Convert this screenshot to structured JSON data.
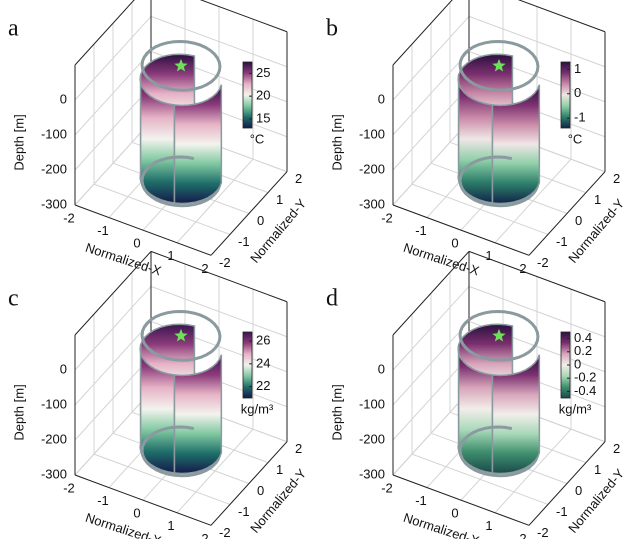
{
  "chart_data": [
    {
      "type": "surface",
      "panel": "a",
      "zlabel": "Depth [m]",
      "xlabel": "Normalized-X",
      "ylabel": "Normalized-Y",
      "zlim": [
        -300,
        100
      ],
      "zticks": [
        0,
        -100,
        -200,
        -300
      ],
      "xlim": [
        -2,
        2
      ],
      "xticks": [
        -2,
        -1,
        0,
        1,
        2
      ],
      "ylim": [
        -2,
        2
      ],
      "yticks": [
        -2,
        -1,
        0,
        1,
        2
      ],
      "clim": [
        13,
        27.5
      ],
      "cticks": [
        15,
        20,
        25
      ],
      "colorbar_label": "°C",
      "colormap": [
        "#2a1040",
        "#8a3a7a",
        "#e6b3c6",
        "#f3f3ee",
        "#7fc8a0",
        "#1f6e6a",
        "#141a4a"
      ]
    },
    {
      "type": "surface",
      "panel": "b",
      "zlabel": "Depth [m]",
      "xlabel": "Normalized-X",
      "ylabel": "Normalized-Y",
      "zlim": [
        -300,
        100
      ],
      "zticks": [
        0,
        -100,
        -200,
        -300
      ],
      "xlim": [
        -2,
        2
      ],
      "xticks": [
        -2,
        -1,
        0,
        1,
        2
      ],
      "ylim": [
        -2,
        2
      ],
      "yticks": [
        -2,
        -1,
        0,
        1,
        2
      ],
      "clim": [
        -1.4,
        1.3
      ],
      "cticks": [
        1,
        0,
        -1
      ],
      "colorbar_label": "°C",
      "colormap": [
        "#2a1040",
        "#7a2f6e",
        "#c98aa8",
        "#f0e6e6",
        "#8fcfa8",
        "#2d7f6a",
        "#10254a"
      ]
    },
    {
      "type": "surface",
      "panel": "c",
      "zlabel": "Depth [m]",
      "xlabel": "Normalized-X",
      "ylabel": "Normalized-Y",
      "zlim": [
        -300,
        100
      ],
      "zticks": [
        0,
        -100,
        -200,
        -300
      ],
      "xlim": [
        -2,
        2
      ],
      "xticks": [
        -2,
        -1,
        0,
        1,
        2
      ],
      "ylim": [
        -2,
        2
      ],
      "yticks": [
        -2,
        -1,
        0,
        1,
        2
      ],
      "clim": [
        21,
        26.8
      ],
      "cticks": [
        26,
        24,
        22
      ],
      "colorbar_label": "kg/m³",
      "colormap": [
        "#3a1550",
        "#8a3a7a",
        "#e6b3c6",
        "#f3f3ee",
        "#7fc8a0",
        "#1f6e6a",
        "#141a4a"
      ]
    },
    {
      "type": "surface",
      "panel": "d",
      "zlabel": "Depth [m]",
      "xlabel": "Normalized-X",
      "ylabel": "Normalized-Y",
      "zlim": [
        -300,
        100
      ],
      "zticks": [
        0,
        -100,
        -200,
        -300
      ],
      "xlim": [
        -2,
        2
      ],
      "xticks": [
        -2,
        -1,
        0,
        1,
        2
      ],
      "ylim": [
        -2,
        2
      ],
      "yticks": [
        -2,
        -1,
        0,
        1,
        2
      ],
      "clim": [
        -0.5,
        0.5
      ],
      "cticks": [
        0.4,
        0.2,
        0,
        -0.2,
        -0.4
      ],
      "colorbar_label": "kg/m³",
      "colormap": [
        "#2a1040",
        "#7a2f6e",
        "#d7a5bb",
        "#f2eeea",
        "#a8d8b8",
        "#3f8f6e",
        "#1a4a4a"
      ]
    }
  ]
}
